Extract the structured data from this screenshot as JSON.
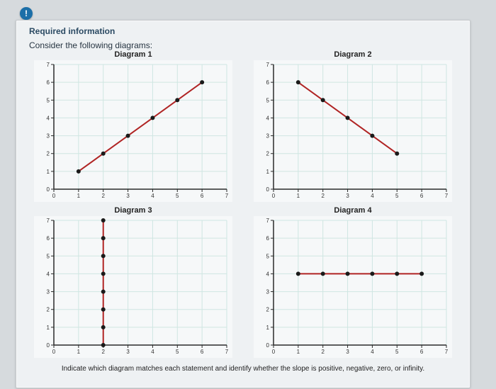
{
  "badge_char": "!",
  "required_label": "Required information",
  "consider_text": "Consider the following diagrams:",
  "footer_text": "Indicate which diagram matches each statement and identify whether the slope is positive, negative, zero, or infinity.",
  "grid_color": "#cfe6e2",
  "axis_color": "#2a2a2a",
  "background_color": "#f6f8f9",
  "tick_fontsize": 8,
  "charts": [
    {
      "title": "Diagram 1",
      "type": "line",
      "xlim": [
        0,
        7
      ],
      "ylim": [
        0,
        7
      ],
      "xticks": [
        0,
        1,
        2,
        3,
        4,
        5,
        6,
        7
      ],
      "yticks": [
        0,
        1,
        2,
        3,
        4,
        5,
        6,
        7
      ],
      "line_color": "#b02424",
      "line_width": 2,
      "marker_color": "#1a1a1a",
      "marker_radius": 3,
      "points": [
        [
          1,
          1
        ],
        [
          2,
          2
        ],
        [
          3,
          3
        ],
        [
          4,
          4
        ],
        [
          5,
          5
        ],
        [
          6,
          6
        ]
      ]
    },
    {
      "title": "Diagram 2",
      "type": "line",
      "xlim": [
        0,
        7
      ],
      "ylim": [
        0,
        7
      ],
      "xticks": [
        0,
        1,
        2,
        3,
        4,
        5,
        6,
        7
      ],
      "yticks": [
        0,
        1,
        2,
        3,
        4,
        5,
        6,
        7
      ],
      "line_color": "#b02424",
      "line_width": 2,
      "marker_color": "#1a1a1a",
      "marker_radius": 3,
      "points": [
        [
          1,
          6
        ],
        [
          2,
          5
        ],
        [
          3,
          4
        ],
        [
          4,
          3
        ],
        [
          5,
          2
        ]
      ]
    },
    {
      "title": "Diagram 3",
      "type": "line",
      "xlim": [
        0,
        7
      ],
      "ylim": [
        0,
        7
      ],
      "xticks": [
        0,
        1,
        2,
        3,
        4,
        5,
        6,
        7
      ],
      "yticks": [
        0,
        1,
        2,
        3,
        4,
        5,
        6,
        7
      ],
      "line_color": "#b02424",
      "line_width": 2,
      "marker_color": "#1a1a1a",
      "marker_radius": 3,
      "points": [
        [
          2,
          0
        ],
        [
          2,
          1
        ],
        [
          2,
          2
        ],
        [
          2,
          3
        ],
        [
          2,
          4
        ],
        [
          2,
          5
        ],
        [
          2,
          6
        ],
        [
          2,
          7
        ]
      ]
    },
    {
      "title": "Diagram 4",
      "type": "line",
      "xlim": [
        0,
        7
      ],
      "ylim": [
        0,
        7
      ],
      "xticks": [
        0,
        1,
        2,
        3,
        4,
        5,
        6,
        7
      ],
      "yticks": [
        0,
        1,
        2,
        3,
        4,
        5,
        6,
        7
      ],
      "line_color": "#b02424",
      "line_width": 2,
      "marker_color": "#1a1a1a",
      "marker_radius": 3,
      "points": [
        [
          1,
          4
        ],
        [
          2,
          4
        ],
        [
          3,
          4
        ],
        [
          4,
          4
        ],
        [
          5,
          4
        ],
        [
          6,
          4
        ]
      ]
    }
  ]
}
